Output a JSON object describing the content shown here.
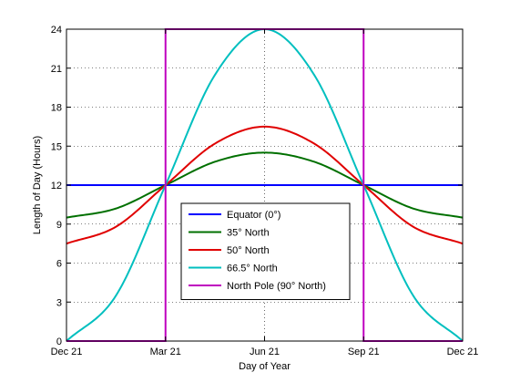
{
  "chart_data": {
    "type": "line",
    "title": "",
    "xlabel": "Day of Year",
    "ylabel": "Length of Day (Hours)",
    "xlim": [
      0,
      365
    ],
    "ylim": [
      0,
      24
    ],
    "grid": true,
    "legend_position": "lower-center",
    "x_ticks": [
      {
        "value": 0,
        "label": "Dec 21"
      },
      {
        "value": 91.25,
        "label": "Mar 21"
      },
      {
        "value": 182.5,
        "label": "Jun 21"
      },
      {
        "value": 273.75,
        "label": "Sep 21"
      },
      {
        "value": 365,
        "label": "Dec 21"
      }
    ],
    "y_ticks": [
      0,
      3,
      6,
      9,
      12,
      15,
      18,
      21,
      24
    ],
    "series": [
      {
        "name": "Equator (0°)",
        "color": "#0000ff",
        "points": [
          [
            0,
            12
          ],
          [
            91.25,
            12
          ],
          [
            182.5,
            12
          ],
          [
            273.75,
            12
          ],
          [
            365,
            12
          ]
        ]
      },
      {
        "name": "35° North",
        "color": "#007000",
        "points": [
          [
            0,
            9.5
          ],
          [
            45.6,
            10.2
          ],
          [
            91.25,
            12
          ],
          [
            136.9,
            13.8
          ],
          [
            182.5,
            14.5
          ],
          [
            228.1,
            13.8
          ],
          [
            273.75,
            12
          ],
          [
            319.4,
            10.2
          ],
          [
            365,
            9.5
          ]
        ]
      },
      {
        "name": "50° North",
        "color": "#e00000",
        "points": [
          [
            0,
            7.5
          ],
          [
            45.6,
            8.8
          ],
          [
            91.25,
            12
          ],
          [
            136.9,
            15.2
          ],
          [
            182.5,
            16.5
          ],
          [
            228.1,
            15.2
          ],
          [
            273.75,
            12
          ],
          [
            319.4,
            8.8
          ],
          [
            365,
            7.5
          ]
        ]
      },
      {
        "name": "66.5° North",
        "color": "#00bfbf",
        "points": [
          [
            0,
            0
          ],
          [
            45.6,
            3.5
          ],
          [
            91.25,
            12
          ],
          [
            136.9,
            20.5
          ],
          [
            182.5,
            24
          ],
          [
            228.1,
            20.5
          ],
          [
            273.75,
            12
          ],
          [
            319.4,
            3.5
          ],
          [
            365,
            0
          ]
        ]
      },
      {
        "name": "North Pole (90° North)",
        "color": "#bf00bf",
        "points": [
          [
            0,
            0
          ],
          [
            91.25,
            0
          ],
          [
            91.25,
            24
          ],
          [
            273.75,
            24
          ],
          [
            273.75,
            0
          ],
          [
            365,
            0
          ]
        ]
      }
    ]
  }
}
